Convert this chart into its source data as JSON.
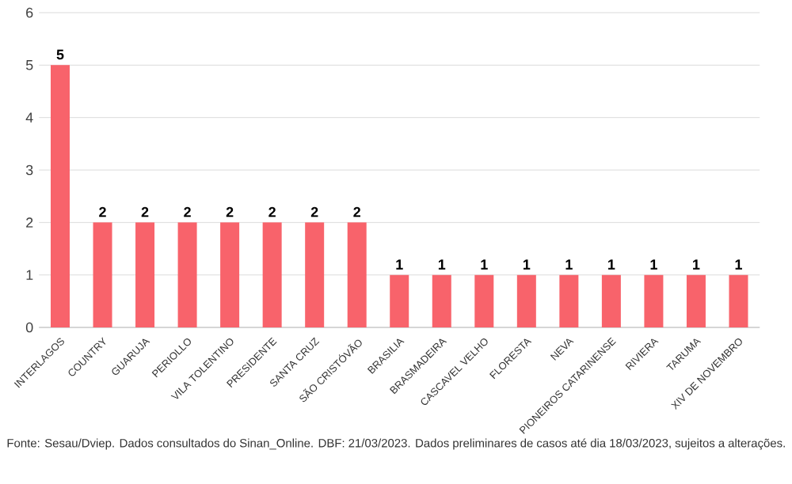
{
  "chart_data": {
    "type": "bar",
    "categories": [
      "INTERLAGOS",
      "COUNTRY",
      "GUARUJA",
      "PERIOLLO",
      "VILA TOLENTINO",
      "PRESIDENTE",
      "SANTA CRUZ",
      "SÃO CRISTÓVÃO",
      "BRASILIA",
      "BRASMADEIRA",
      "CASCAVEL VELHO",
      "FLORESTA",
      "NEVA",
      "PIONEIROS CATARINENSE",
      "RIVIERA",
      "TARUMA",
      "XIV DE NOVEMBRO"
    ],
    "values": [
      5,
      2,
      2,
      2,
      2,
      2,
      2,
      2,
      1,
      1,
      1,
      1,
      1,
      1,
      1,
      1,
      1
    ],
    "color": "#f8636b",
    "ylim": [
      0,
      6
    ],
    "yticks": [
      0,
      1,
      2,
      3,
      4,
      5,
      6
    ],
    "grid": "y",
    "data_labels": true,
    "annotations": [
      "Fonte: Sesau/Dviep. Dados consultados do Sinan_Online. DBF: 21/03/2023. Dados preliminares de casos até dia 18/03/2023, sujeitos a alterações."
    ]
  }
}
